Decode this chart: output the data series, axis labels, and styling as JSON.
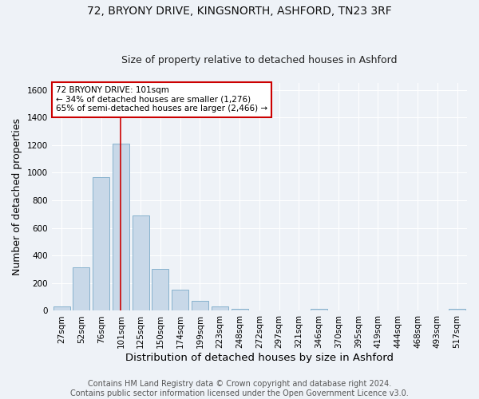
{
  "title_line1": "72, BRYONY DRIVE, KINGSNORTH, ASHFORD, TN23 3RF",
  "title_line2": "Size of property relative to detached houses in Ashford",
  "xlabel": "Distribution of detached houses by size in Ashford",
  "ylabel": "Number of detached properties",
  "categories": [
    "27sqm",
    "52sqm",
    "76sqm",
    "101sqm",
    "125sqm",
    "150sqm",
    "174sqm",
    "199sqm",
    "223sqm",
    "248sqm",
    "272sqm",
    "297sqm",
    "321sqm",
    "346sqm",
    "370sqm",
    "395sqm",
    "419sqm",
    "444sqm",
    "468sqm",
    "493sqm",
    "517sqm"
  ],
  "values": [
    30,
    315,
    970,
    1210,
    690,
    305,
    155,
    70,
    30,
    13,
    5,
    0,
    0,
    12,
    0,
    0,
    0,
    0,
    0,
    0,
    12
  ],
  "bar_color": "#c8d8e8",
  "bar_edge_color": "#7aaac8",
  "highlight_index": 3,
  "highlight_line_color": "#cc0000",
  "annotation_text": "72 BRYONY DRIVE: 101sqm\n← 34% of detached houses are smaller (1,276)\n65% of semi-detached houses are larger (2,466) →",
  "annotation_box_color": "#ffffff",
  "annotation_box_edge_color": "#cc0000",
  "ylim": [
    0,
    1650
  ],
  "yticks": [
    0,
    200,
    400,
    600,
    800,
    1000,
    1200,
    1400,
    1600
  ],
  "background_color": "#eef2f7",
  "grid_color": "#ffffff",
  "footer_text": "Contains HM Land Registry data © Crown copyright and database right 2024.\nContains public sector information licensed under the Open Government Licence v3.0.",
  "title_fontsize": 10,
  "subtitle_fontsize": 9,
  "axis_label_fontsize": 9,
  "tick_fontsize": 7.5,
  "annotation_fontsize": 7.5,
  "footer_fontsize": 7
}
